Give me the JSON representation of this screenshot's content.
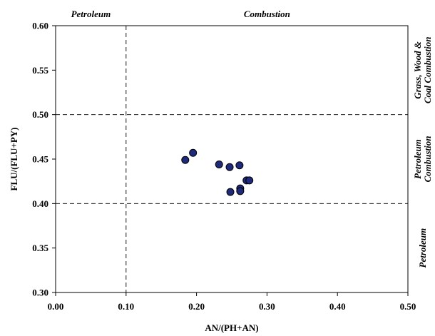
{
  "chart_data": {
    "type": "scatter",
    "xlabel": "AN/(PH+AN)",
    "ylabel": "FLU/(FLU+PY)",
    "xlim": [
      0.0,
      0.5
    ],
    "ylim": [
      0.3,
      0.6
    ],
    "x_ticks": [
      "0.00",
      "0.10",
      "0.20",
      "0.30",
      "0.40",
      "0.50"
    ],
    "y_ticks": [
      "0.30",
      "0.35",
      "0.40",
      "0.45",
      "0.50",
      "0.55",
      "0.60"
    ],
    "grid": false,
    "thresholds": {
      "x": [
        0.1
      ],
      "y": [
        0.4,
        0.5
      ]
    },
    "top_labels": [
      {
        "text": "Petroleum",
        "x_range": [
          0.0,
          0.1
        ]
      },
      {
        "text": "Combustion",
        "x_range": [
          0.1,
          0.5
        ]
      }
    ],
    "right_labels": [
      {
        "lines": [
          "Grass, Wood &",
          "Coal Combustion"
        ],
        "y_range": [
          0.5,
          0.6
        ]
      },
      {
        "lines": [
          "Petroleum",
          "Combustion"
        ],
        "y_range": [
          0.4,
          0.5
        ]
      },
      {
        "lines": [
          "Petroleum"
        ],
        "y_range": [
          0.3,
          0.4
        ]
      }
    ],
    "series": [
      {
        "marker": "circle",
        "color": "#1f2a7a",
        "points": [
          {
            "x": 0.184,
            "y": 0.449
          },
          {
            "x": 0.195,
            "y": 0.457
          },
          {
            "x": 0.232,
            "y": 0.444
          },
          {
            "x": 0.247,
            "y": 0.441
          },
          {
            "x": 0.261,
            "y": 0.443
          },
          {
            "x": 0.271,
            "y": 0.426
          },
          {
            "x": 0.275,
            "y": 0.426
          },
          {
            "x": 0.262,
            "y": 0.417
          },
          {
            "x": 0.262,
            "y": 0.414
          },
          {
            "x": 0.248,
            "y": 0.413
          }
        ]
      }
    ]
  }
}
